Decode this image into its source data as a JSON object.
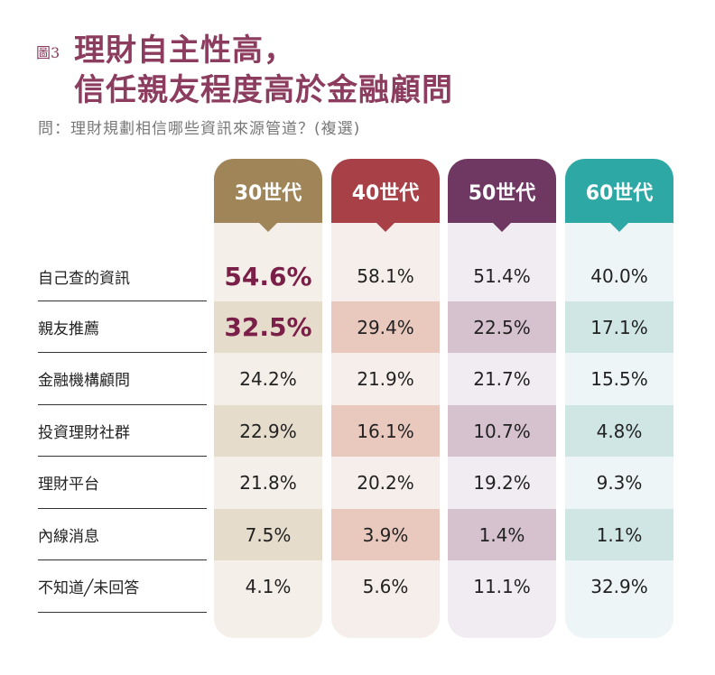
{
  "figure_label": "圖3",
  "title_line1": "理財自主性高，",
  "title_line2": "信任親友程度高於金融顧問",
  "question": "問：理財規劃相信哪些資訊來源管道？(複選)",
  "chart_data": {
    "type": "table",
    "columns": [
      "30世代",
      "40世代",
      "50世代",
      "60世代"
    ],
    "column_colors": [
      "#a08559",
      "#a84048",
      "#6e3862",
      "#2ea8a5"
    ],
    "rows": [
      "自己查的資訊",
      "親友推薦",
      "金融機構顧問",
      "投資理財社群",
      "理財平台",
      "內線消息",
      "不知道╱未回答"
    ],
    "values": [
      [
        "54.6%",
        "58.1%",
        "51.4%",
        "40.0%"
      ],
      [
        "32.5%",
        "29.4%",
        "22.5%",
        "17.1%"
      ],
      [
        "24.2%",
        "21.9%",
        "21.7%",
        "15.5%"
      ],
      [
        "22.9%",
        "16.1%",
        "10.7%",
        "4.8%"
      ],
      [
        "21.8%",
        "20.2%",
        "19.2%",
        "9.3%"
      ],
      [
        "7.5%",
        "3.9%",
        "1.4%",
        "1.1%"
      ],
      [
        "4.1%",
        "5.6%",
        "11.1%",
        "32.9%"
      ]
    ],
    "highlighted": [
      [
        0,
        0
      ],
      [
        1,
        0
      ]
    ],
    "highlight_color": "#7a1f48"
  }
}
